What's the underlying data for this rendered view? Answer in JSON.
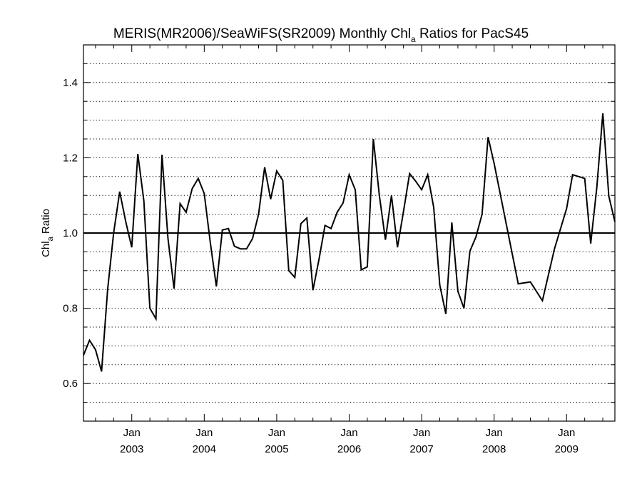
{
  "chart_data": {
    "type": "line",
    "title": "MERIS(MR2006)/SeaWiFS(SR2009) Monthly Chl",
    "title_subscript": "a",
    "title_suffix": " Ratios for PacS45",
    "ylabel": "Chl",
    "ylabel_subscript": "a",
    "ylabel_suffix": " Ratio",
    "ylim": [
      0.5,
      1.5
    ],
    "yticks": [
      0.6,
      0.8,
      1.0,
      1.2,
      1.4
    ],
    "ytick_labels": [
      "0.6",
      "0.8",
      "1.0",
      "1.2",
      "1.4"
    ],
    "xlim": [
      "2002-05",
      "2009-09"
    ],
    "xticks": [
      {
        "date": "2003-01",
        "month": "Jan",
        "year": "2003"
      },
      {
        "date": "2004-01",
        "month": "Jan",
        "year": "2004"
      },
      {
        "date": "2005-01",
        "month": "Jan",
        "year": "2005"
      },
      {
        "date": "2006-01",
        "month": "Jan",
        "year": "2006"
      },
      {
        "date": "2007-01",
        "month": "Jan",
        "year": "2007"
      },
      {
        "date": "2008-01",
        "month": "Jan",
        "year": "2008"
      },
      {
        "date": "2009-01",
        "month": "Jan",
        "year": "2009"
      }
    ],
    "grid": "horizontal dotted",
    "reference_line": 1.0,
    "series": [
      {
        "x": [
          "2002-05",
          "2002-06",
          "2002-07",
          "2002-08",
          "2002-09",
          "2002-10",
          "2002-11",
          "2002-12",
          "2003-01",
          "2003-02",
          "2003-03",
          "2003-04",
          "2003-05",
          "2003-06",
          "2003-07",
          "2003-08",
          "2003-09",
          "2003-10",
          "2003-11",
          "2003-12",
          "2004-01",
          "2004-02",
          "2004-03",
          "2004-04",
          "2004-05",
          "2004-06",
          "2004-07",
          "2004-08",
          "2004-09",
          "2004-10",
          "2004-11",
          "2004-12",
          "2005-01",
          "2005-02",
          "2005-03",
          "2005-04",
          "2005-05",
          "2005-06",
          "2005-07",
          "2005-08",
          "2005-09",
          "2005-10",
          "2005-11",
          "2005-12",
          "2006-01",
          "2006-02",
          "2006-03",
          "2006-04",
          "2006-05",
          "2006-06",
          "2006-07",
          "2006-08",
          "2006-09",
          "2006-10",
          "2006-11",
          "2006-12",
          "2007-01",
          "2007-02",
          "2007-03",
          "2007-04",
          "2007-05",
          "2007-06",
          "2007-07",
          "2007-08",
          "2007-09",
          "2007-10",
          "2007-11",
          "2007-12",
          "2008-01",
          "2008-05",
          "2008-07",
          "2008-09",
          "2008-11",
          "2009-01",
          "2009-02",
          "2009-03",
          "2009-04",
          "2009-05",
          "2009-06",
          "2009-07",
          "2009-08",
          "2009-09"
        ],
        "values": [
          0.675,
          0.715,
          0.69,
          0.632,
          0.85,
          1.0,
          1.11,
          1.03,
          0.962,
          1.21,
          1.085,
          0.8,
          0.772,
          1.208,
          0.985,
          0.852,
          1.078,
          1.055,
          1.118,
          1.145,
          1.105,
          0.975,
          0.858,
          1.008,
          1.012,
          0.965,
          0.958,
          0.958,
          0.985,
          1.05,
          1.175,
          1.09,
          1.165,
          1.14,
          0.9,
          0.882,
          1.025,
          1.04,
          0.848,
          0.93,
          1.02,
          1.012,
          1.055,
          1.08,
          1.155,
          1.115,
          0.902,
          0.91,
          1.25,
          1.1,
          0.982,
          1.1,
          0.962,
          1.058,
          1.158,
          1.138,
          1.115,
          1.155,
          1.068,
          0.862,
          0.785,
          1.028,
          0.845,
          0.8,
          0.952,
          0.99,
          1.05,
          1.255,
          1.185,
          0.865,
          0.87,
          0.82,
          0.958,
          1.065,
          1.155,
          1.15,
          1.145,
          0.972,
          1.12,
          1.318,
          1.098,
          1.03
        ]
      }
    ]
  }
}
